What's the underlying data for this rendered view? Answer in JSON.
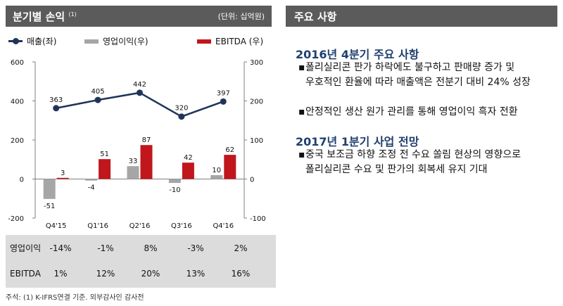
{
  "left_panel": {
    "title": "분기별 손익",
    "title_note": "(1)",
    "unit": "(단위: 십억원)"
  },
  "legend": {
    "sales": "매출(좌)",
    "op_profit": "영업이익(우)",
    "ebitda": "EBITDA (우)"
  },
  "chart_data": {
    "type": "bar",
    "categories": [
      "Q4'15",
      "Q1'16",
      "Q2'16",
      "Q3'16",
      "Q4'16"
    ],
    "series": [
      {
        "name": "매출(좌)",
        "type": "line",
        "axis": "left",
        "values": [
          363,
          405,
          442,
          320,
          397
        ],
        "color": "#1f3558"
      },
      {
        "name": "영업이익(우)",
        "type": "bar",
        "axis": "right",
        "values": [
          -51,
          -4,
          33,
          -10,
          10
        ],
        "color": "#a6a6a6"
      },
      {
        "name": "EBITDA (우)",
        "type": "bar",
        "axis": "right",
        "values": [
          3,
          51,
          87,
          42,
          62
        ],
        "color": "#c0161c"
      }
    ],
    "ylim_left": [
      -200,
      600
    ],
    "ylim_right": [
      -100,
      300
    ],
    "yticks_left": [
      "600",
      "400",
      "200",
      "0",
      "-200"
    ],
    "yticks_right": [
      "300",
      "200",
      "100",
      "0",
      "-100"
    ],
    "grid": false
  },
  "table": {
    "rows": [
      {
        "label": "영업이익",
        "values": [
          "-14%",
          "-1%",
          "8%",
          "-3%",
          "2%"
        ]
      },
      {
        "label": "EBITDA",
        "values": [
          "1%",
          "12%",
          "20%",
          "13%",
          "16%"
        ]
      }
    ]
  },
  "footnote": "주석: (1) K-IFRS연결 기준. 외부감사인 감사전",
  "right_panel": {
    "title": "주요 사항",
    "sections": [
      {
        "heading": "2016년 4분기 주요 사항",
        "bullets": [
          [
            "폴리실리콘 판가 하락에도 불구하고 판매량 증가 및",
            "우호적인 환율에 따라 매출액은 전분기 대비 24% 성장"
          ],
          [
            "안정적인 생산 원가 관리를 통해 영업이익 흑자 전환"
          ]
        ]
      },
      {
        "heading": "2017년 1분기 사업 전망",
        "bullets": [
          [
            "중국 보조금 하향 조정 전 수요 쏠림 현상의 영향으로",
            "폴리실리콘 수요 및 판가의 회복세 유지 기대"
          ]
        ]
      }
    ],
    "bullet_marker": "▪"
  }
}
